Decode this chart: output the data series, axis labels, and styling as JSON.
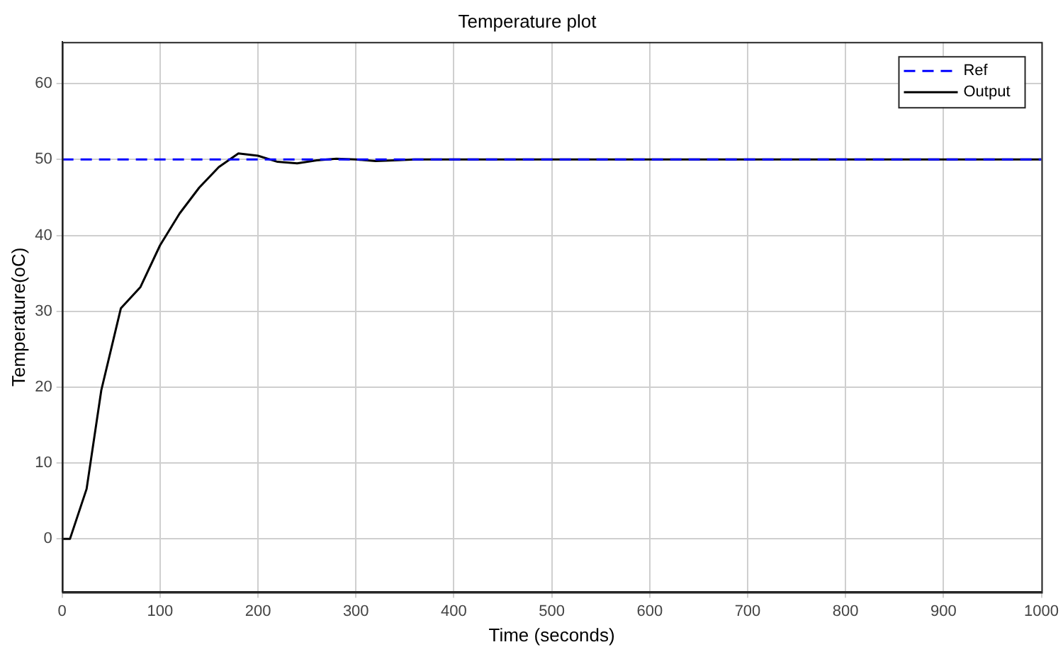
{
  "chart_data": {
    "type": "line",
    "title": "Temperature plot",
    "xlabel": "Time (seconds)",
    "ylabel": "Temperature(oC)",
    "xlim": [
      0,
      1000
    ],
    "xticks": [
      0,
      100,
      200,
      300,
      400,
      500,
      600,
      700,
      800,
      900,
      1000
    ],
    "ylim": [
      -7,
      65.5
    ],
    "yticks": [
      0,
      10,
      20,
      30,
      40,
      50,
      60
    ],
    "grid": true,
    "legend": "top right",
    "marker": "none",
    "series": [
      {
        "name": "Ref",
        "color": "#0000ff",
        "line_style": "dashed",
        "x": [
          0,
          1000
        ],
        "values": [
          50,
          50
        ]
      },
      {
        "name": "Output",
        "color": "#000000",
        "line_style": "solid",
        "x": [
          0,
          8,
          25,
          40,
          60,
          80,
          100,
          120,
          140,
          160,
          180,
          200,
          220,
          240,
          260,
          280,
          300,
          320,
          340,
          360,
          400,
          500,
          600,
          700,
          800,
          900,
          1000
        ],
        "values": [
          0,
          0,
          6.6,
          19.6,
          30.4,
          33.2,
          38.7,
          42.9,
          46.3,
          49.0,
          50.8,
          50.5,
          49.7,
          49.5,
          49.9,
          50.1,
          50,
          49.8,
          49.9,
          50,
          50,
          50,
          50,
          50,
          50,
          50,
          50
        ]
      }
    ]
  }
}
